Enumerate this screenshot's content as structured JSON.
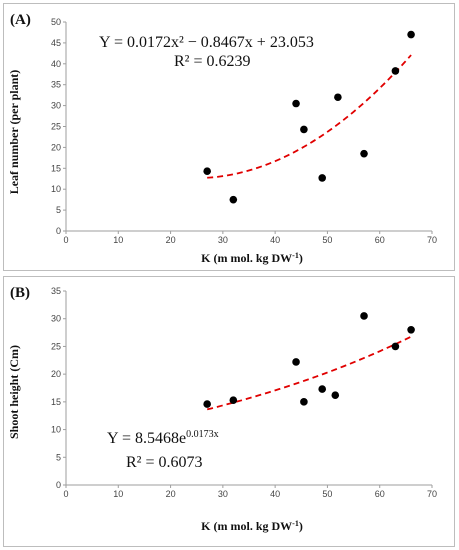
{
  "chart_data": [
    {
      "type": "scatter",
      "panel_label": "(A)",
      "xlabel": "K (m mol. kg DW",
      "xlabel_sup": "-1",
      "xlabel_end": ")",
      "ylabel": "Leaf number (per plant)",
      "xlim": [
        0,
        70
      ],
      "ylim": [
        0,
        50
      ],
      "xticks": [
        0,
        10,
        20,
        30,
        40,
        50,
        60,
        70
      ],
      "yticks": [
        0,
        5,
        10,
        15,
        20,
        25,
        30,
        35,
        40,
        45,
        50
      ],
      "x": [
        27,
        32,
        44,
        45.5,
        49,
        52,
        57,
        63,
        66
      ],
      "y": [
        14.3,
        7.5,
        30.5,
        24.3,
        12.7,
        32,
        18.5,
        38.3,
        47
      ],
      "trendline": {
        "kind": "polynomial",
        "a": 0.0172,
        "b": -0.8467,
        "c": 23.053,
        "x_range": [
          27,
          66
        ],
        "color": "#e00000"
      },
      "equation": "Y = 0.0172x² − 0.8467x + 23.053",
      "r2": "R² = 0.6239",
      "grid": false,
      "legend": "none"
    },
    {
      "type": "scatter",
      "panel_label": "(B)",
      "xlabel": "K (m mol. kg DW",
      "xlabel_sup": "-1",
      "xlabel_end": ")",
      "ylabel": "Shoot height (Cm)",
      "xlim": [
        0,
        70
      ],
      "ylim": [
        0,
        35
      ],
      "xticks": [
        0,
        10,
        20,
        30,
        40,
        50,
        60,
        70
      ],
      "yticks": [
        0,
        5,
        10,
        15,
        20,
        25,
        30,
        35
      ],
      "x": [
        27,
        32,
        44,
        45.5,
        49,
        51.5,
        57,
        63,
        66
      ],
      "y": [
        14.6,
        15.3,
        22.2,
        15,
        17.3,
        16.2,
        30.5,
        25,
        28
      ],
      "trendline": {
        "kind": "exponential",
        "a": 8.5468,
        "b": 0.0173,
        "x_range": [
          27,
          66
        ],
        "color": "#e00000"
      },
      "equation_base": "Y = 8.5468e",
      "equation_exp": "0.0173x",
      "r2": "R² = 0.6073",
      "grid": false,
      "legend": "none"
    }
  ]
}
